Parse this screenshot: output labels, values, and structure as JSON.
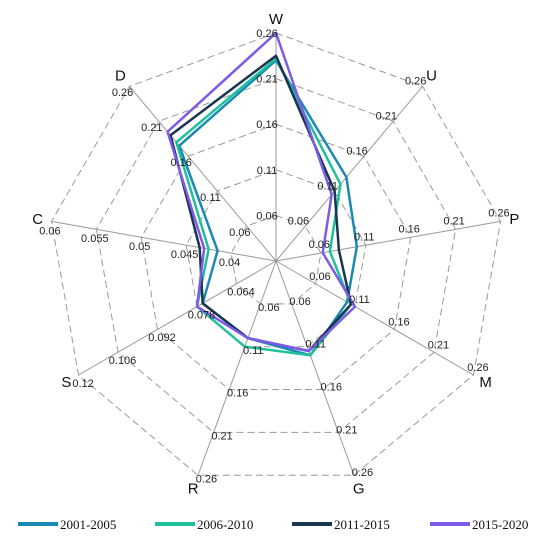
{
  "chart_data": {
    "type": "radar",
    "title": "",
    "axes": [
      {
        "name": "W",
        "ticks": [
          "0.06",
          "0.11",
          "0.16",
          "0.21",
          "0.26"
        ],
        "min": 0.01,
        "max": 0.26
      },
      {
        "name": "U",
        "ticks": [
          "0.06",
          "0.11",
          "0.16",
          "0.21",
          "0.26"
        ],
        "min": 0.01,
        "max": 0.26
      },
      {
        "name": "P",
        "ticks": [
          "0.06",
          "0.11",
          "0.16",
          "0.21",
          "0.26"
        ],
        "min": 0.01,
        "max": 0.26
      },
      {
        "name": "M",
        "ticks": [
          "0.06",
          "0.11",
          "0.16",
          "0.21",
          "0.26"
        ],
        "min": 0.01,
        "max": 0.26
      },
      {
        "name": "G",
        "ticks": [
          "0.06",
          "0.11",
          "0.16",
          "0.21",
          "0.26"
        ],
        "min": 0.01,
        "max": 0.26
      },
      {
        "name": "R",
        "ticks": [
          "0.06",
          "0.11",
          "0.16",
          "0.21",
          "0.26"
        ],
        "min": 0.01,
        "max": 0.26
      },
      {
        "name": "S",
        "ticks": [
          "0.064",
          "0.078",
          "0.092",
          "0.106",
          "0.12"
        ],
        "min": 0.05,
        "max": 0.12
      },
      {
        "name": "C",
        "ticks": [
          "0.04",
          "0.045",
          "0.05",
          "0.055",
          "0.06"
        ],
        "min": 0.035,
        "max": 0.06
      },
      {
        "name": "D",
        "ticks": [
          "0.06",
          "0.11",
          "0.16",
          "0.21",
          "0.26"
        ],
        "min": 0.01,
        "max": 0.26
      }
    ],
    "series": [
      {
        "name": "2001-2005",
        "color": "#1a8ab5",
        "values": [
          0.23,
          0.13,
          0.1,
          0.1,
          0.12,
          0.1,
          0.076,
          0.0415,
          0.175
        ]
      },
      {
        "name": "2006-2010",
        "color": "#1fc19a",
        "values": [
          0.232,
          0.12,
          0.07,
          0.105,
          0.12,
          0.11,
          0.078,
          0.0425,
          0.18
        ]
      },
      {
        "name": "2011-2015",
        "color": "#1a3550",
        "values": [
          0.235,
          0.11,
          0.08,
          0.105,
          0.115,
          0.1,
          0.076,
          0.0435,
          0.19
        ]
      },
      {
        "name": "2015-2020",
        "color": "#7d5ae8",
        "values": [
          0.26,
          0.105,
          0.062,
          0.11,
          0.115,
          0.1,
          0.078,
          0.043,
          0.195
        ]
      }
    ],
    "legend_position": "bottom",
    "grid": true
  }
}
